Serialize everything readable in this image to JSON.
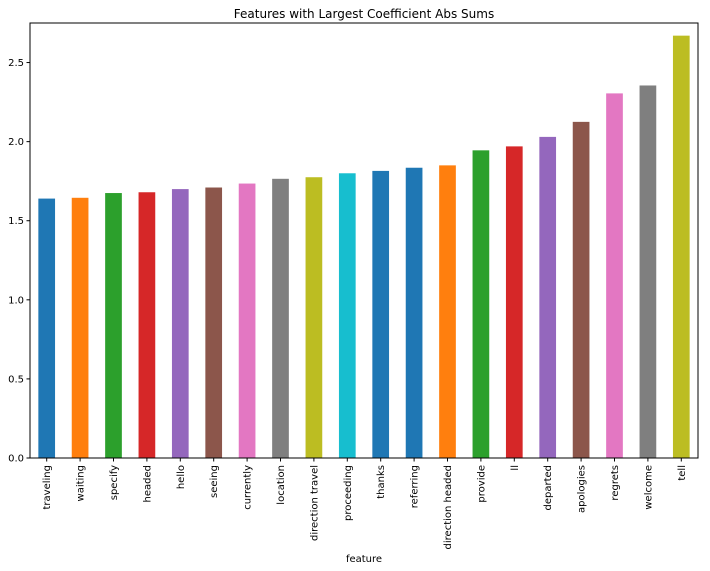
{
  "chart_data": {
    "type": "bar",
    "title": "Features with Largest Coefficient Abs Sums",
    "xlabel": "feature",
    "ylabel": "",
    "ylim": [
      0,
      2.75
    ],
    "yticks": [
      "0.0",
      "0.5",
      "1.0",
      "1.5",
      "2.0",
      "2.5"
    ],
    "grid": false,
    "legend": "none",
    "categories": [
      "traveling",
      "waiting",
      "specify",
      "headed",
      "hello",
      "seeing",
      "currently",
      "location",
      "direction travel",
      "proceeding",
      "thanks",
      "referring",
      "direction headed",
      "provide",
      "ll",
      "departed",
      "apologies",
      "regrets",
      "welcome",
      "tell"
    ],
    "values": [
      1.64,
      1.645,
      1.675,
      1.68,
      1.7,
      1.71,
      1.735,
      1.765,
      1.775,
      1.8,
      1.815,
      1.835,
      1.85,
      1.945,
      1.97,
      2.03,
      2.125,
      2.305,
      2.355,
      2.67
    ],
    "colors": [
      "#1f77b4",
      "#ff7f0e",
      "#2ca02c",
      "#d62728",
      "#9467bd",
      "#8c564b",
      "#e377c2",
      "#7f7f7f",
      "#bcbd22",
      "#17becf",
      "#1f77b4",
      "#1f77b4",
      "#ff7f0e",
      "#2ca02c",
      "#d62728",
      "#9467bd",
      "#8c564b",
      "#e377c2",
      "#7f7f7f",
      "#bcbd22"
    ]
  }
}
